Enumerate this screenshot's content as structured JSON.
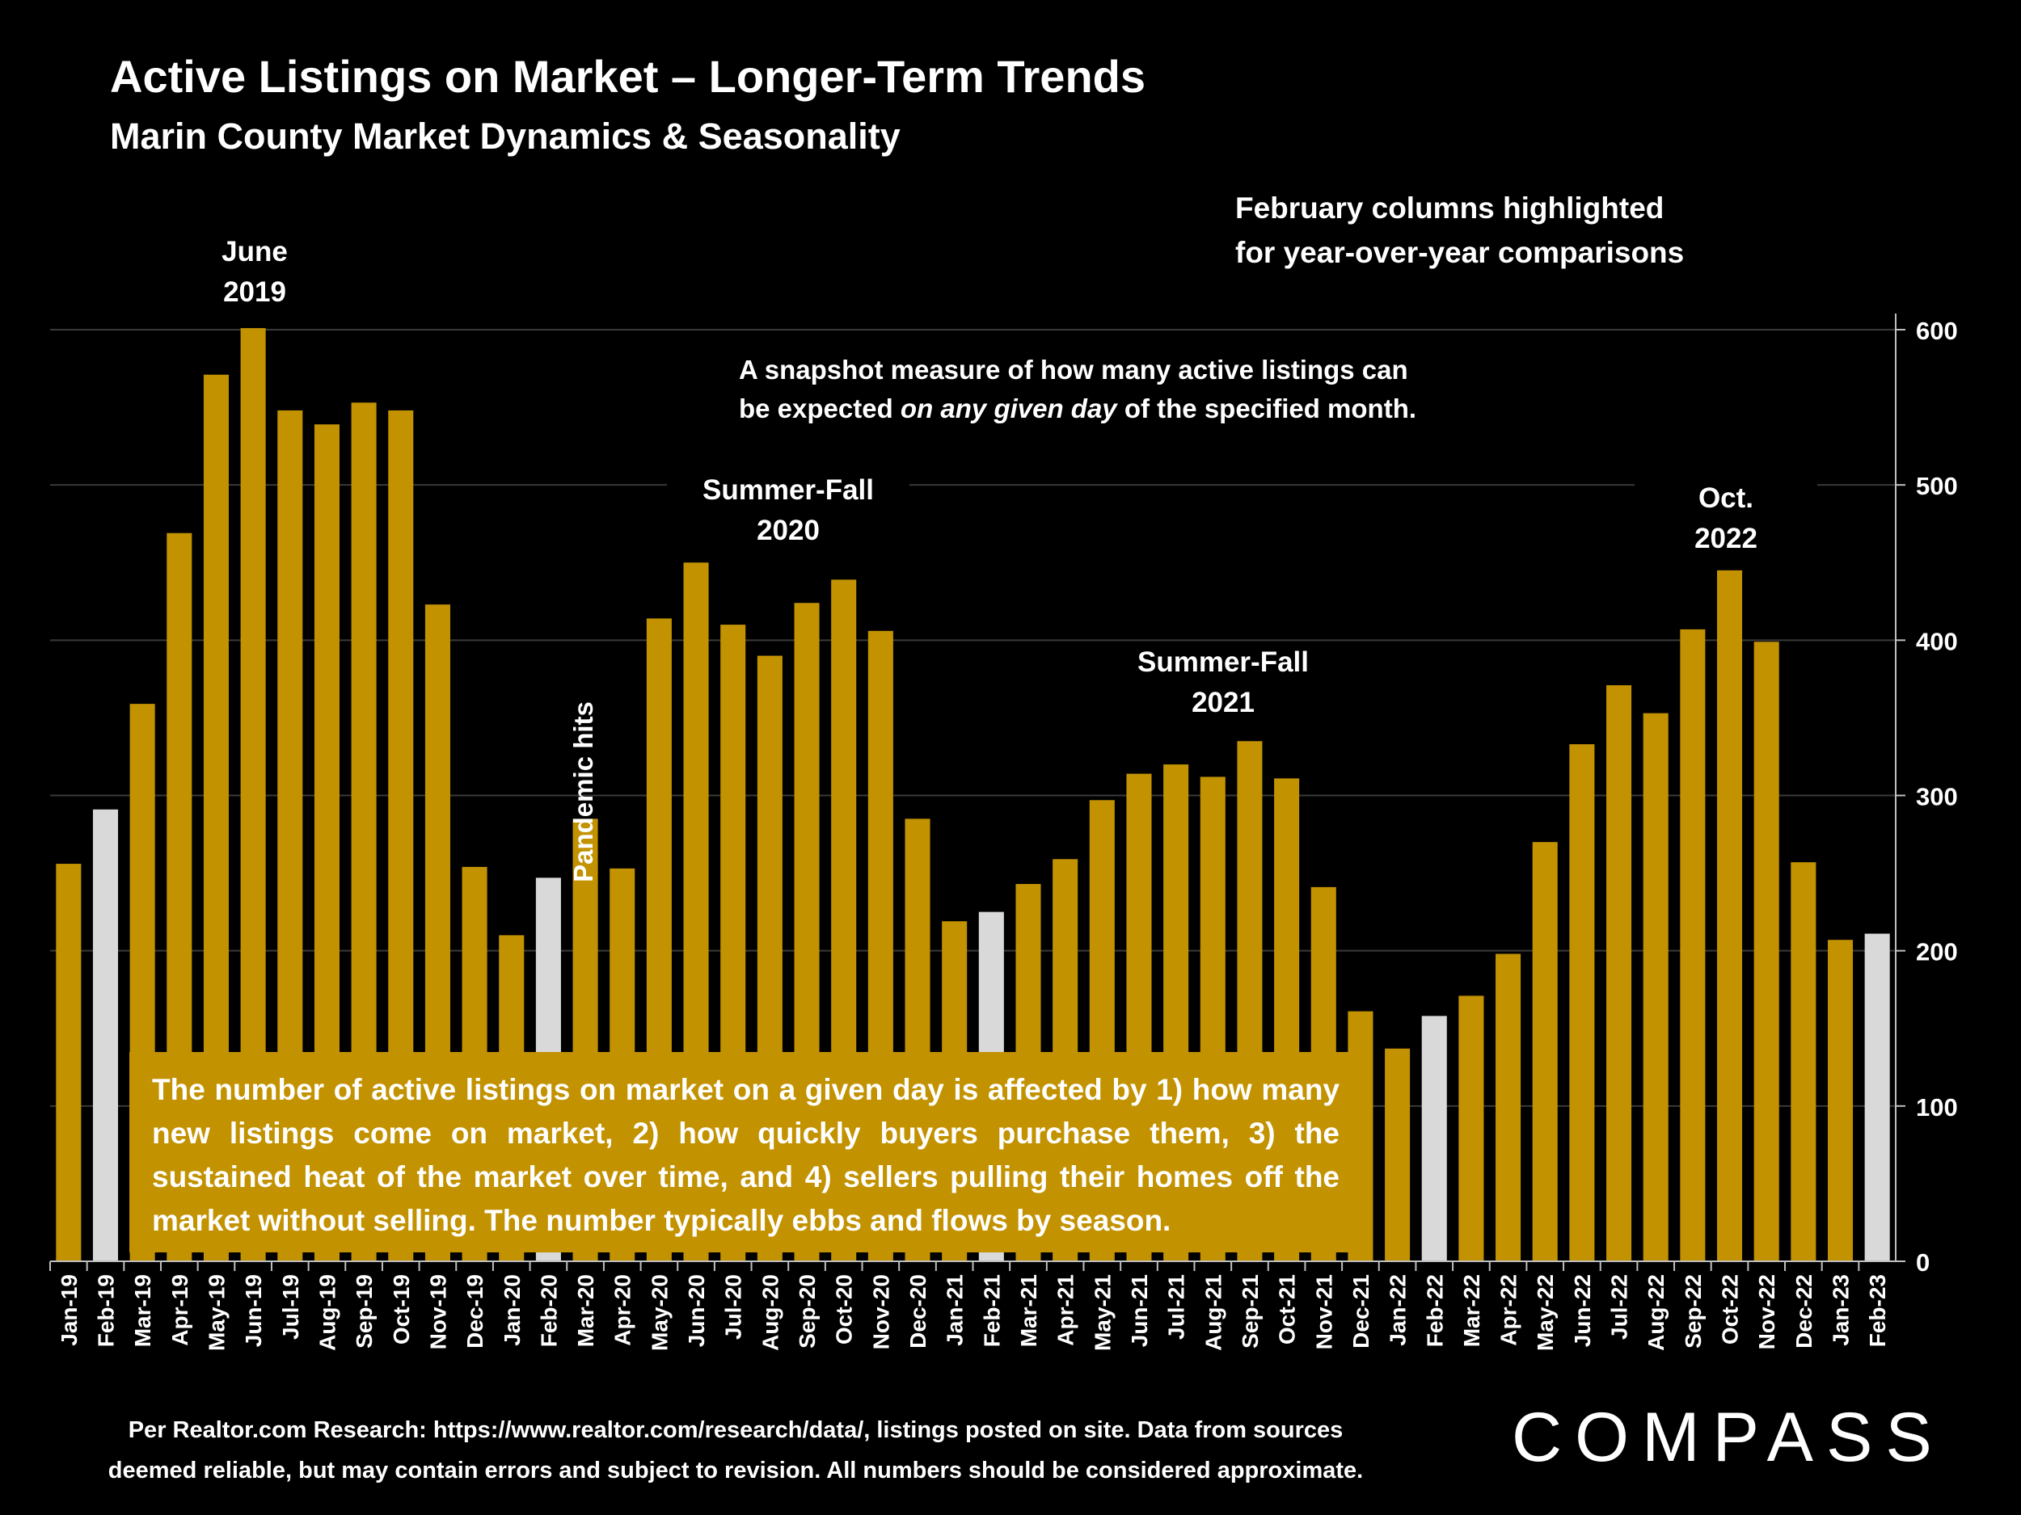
{
  "title": "Active Listings on Market – Longer-Term Trends",
  "subtitle": "Marin County Market Dynamics & Seasonality",
  "notes": {
    "feb_line1": "February columns highlighted",
    "feb_line2": "for year-over-year comparisons",
    "snapshot_line1": "A snapshot measure of how many active listings can",
    "snapshot_line2_pre": "be expected ",
    "snapshot_line2_em": "on any given day",
    "snapshot_line2_post": " of the specified month."
  },
  "annotations": {
    "june2019_l1": "June",
    "june2019_l2": "2019",
    "sf2020_l1": "Summer-Fall",
    "sf2020_l2": "2020",
    "sf2021_l1": "Summer-Fall",
    "sf2021_l2": "2021",
    "oct2022_l1": "Oct.",
    "oct2022_l2": "2022",
    "pandemic": "Pandemic hits"
  },
  "explanation": "The number of active listings on market on a given day is affected by 1) how many new listings come on market, 2) how quickly buyers purchase them, 3) the sustained heat of the market over time, and 4) sellers pulling their homes off the market without selling. The number typically ebbs and flows by season.",
  "footer": {
    "line1": "Per Realtor.com Research:  https://www.realtor.com/research/data/, listings posted on site. Data from sources",
    "line2": "deemed reliable, but may contain errors and subject to revision. All numbers should be considered approximate."
  },
  "logo": "COMPASS",
  "colors": {
    "bar": "#c29200",
    "highlight": "#d9d9d9",
    "grid": "#3a3a3a",
    "background": "#000000"
  },
  "chart_data": {
    "type": "bar",
    "title": "Active Listings on Market – Longer-Term Trends",
    "ylim": [
      0,
      600
    ],
    "yticks": [
      "0",
      "100",
      "200",
      "300",
      "400",
      "500",
      "600"
    ],
    "ytick_values": [
      0,
      100,
      200,
      300,
      400,
      500,
      600
    ],
    "categories": [
      "Jan-19",
      "Feb-19",
      "Mar-19",
      "Apr-19",
      "May-19",
      "Jun-19",
      "Jul-19",
      "Aug-19",
      "Sep-19",
      "Oct-19",
      "Nov-19",
      "Dec-19",
      "Jan-20",
      "Feb-20",
      "Mar-20",
      "Apr-20",
      "May-20",
      "Jun-20",
      "Jul-20",
      "Aug-20",
      "Sep-20",
      "Oct-20",
      "Nov-20",
      "Dec-20",
      "Jan-21",
      "Feb-21",
      "Mar-21",
      "Apr-21",
      "May-21",
      "Jun-21",
      "Jul-21",
      "Aug-21",
      "Sep-21",
      "Oct-21",
      "Nov-21",
      "Dec-21",
      "Jan-22",
      "Feb-22",
      "Mar-22",
      "Apr-22",
      "May-22",
      "Jun-22",
      "Jul-22",
      "Aug-22",
      "Sep-22",
      "Oct-22",
      "Nov-22",
      "Dec-22",
      "Jan-23",
      "Feb-23"
    ],
    "values": [
      256,
      291,
      359,
      469,
      571,
      601,
      548,
      539,
      553,
      548,
      423,
      254,
      210,
      247,
      285,
      253,
      414,
      450,
      410,
      390,
      424,
      439,
      406,
      285,
      219,
      225,
      243,
      259,
      297,
      314,
      320,
      312,
      335,
      311,
      241,
      161,
      137,
      158,
      171,
      198,
      270,
      333,
      371,
      353,
      407,
      445,
      399,
      257,
      207,
      211
    ],
    "highlight": [
      "Feb-19",
      "Feb-20",
      "Feb-21",
      "Feb-22",
      "Feb-23"
    ],
    "y_axis_position": "right",
    "grid": true
  }
}
